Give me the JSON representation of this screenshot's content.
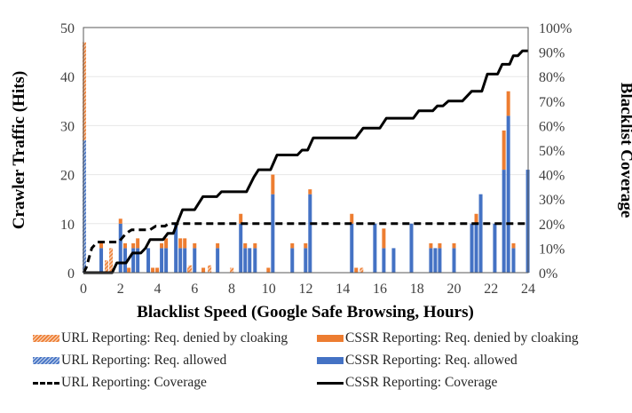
{
  "chart_data": {
    "type": "bar",
    "title": "",
    "xlabel": "Blacklist Speed (Google Safe Browsing, Hours)",
    "ylabel": "Crawler Traffic (Hits)",
    "y2label": "Blacklist Coverage",
    "xlim": [
      0,
      24
    ],
    "ylim": [
      0,
      50
    ],
    "y2lim": [
      0,
      100
    ],
    "x_ticks": [
      "0",
      "2",
      "4",
      "6",
      "8",
      "10",
      "12",
      "14",
      "16",
      "18",
      "20",
      "22",
      "24"
    ],
    "y_ticks": [
      "0",
      "10",
      "20",
      "30",
      "40",
      "50"
    ],
    "y2_ticks": [
      "0%",
      "10%",
      "20%",
      "30%",
      "40%",
      "50%",
      "60%",
      "70%",
      "80%",
      "90%",
      "100%"
    ],
    "grid": true,
    "legend_position": "bottom",
    "colors": {
      "cssr_allowed": "#4472c4",
      "cssr_denied": "#ed7d31",
      "url_allowed_hatch": "#4472c4",
      "url_denied_hatch": "#ed7d31",
      "line": "#000000"
    },
    "series": [
      {
        "name": "URL Reporting: Req. denied by cloaking",
        "kind": "stacked-bar-hatched",
        "points": [
          [
            0,
            20
          ],
          [
            1.2,
            2.5
          ],
          [
            1.44,
            5
          ],
          [
            5.71,
            1.5
          ],
          [
            6.76,
            1.5
          ],
          [
            7.96,
            1
          ],
          [
            14.96,
            1
          ]
        ]
      },
      {
        "name": "URL Reporting: Req. allowed",
        "kind": "stacked-bar-hatched",
        "points": [
          [
            0,
            27
          ]
        ]
      },
      {
        "name": "CSSR Reporting: Req. denied by cloaking",
        "kind": "stacked-bar",
        "points": [
          [
            0.96,
            1
          ],
          [
            2.0,
            1
          ],
          [
            2.25,
            1
          ],
          [
            2.45,
            1
          ],
          [
            2.69,
            1
          ],
          [
            2.93,
            2
          ],
          [
            3.74,
            1
          ],
          [
            3.98,
            1
          ],
          [
            4.22,
            1
          ],
          [
            4.46,
            2
          ],
          [
            5.23,
            2
          ],
          [
            5.47,
            2
          ],
          [
            5.71,
            1
          ],
          [
            6.0,
            1
          ],
          [
            6.47,
            1
          ],
          [
            7.24,
            1
          ],
          [
            8.49,
            2
          ],
          [
            8.73,
            1
          ],
          [
            9.26,
            1
          ],
          [
            9.98,
            1
          ],
          [
            10.22,
            4
          ],
          [
            11.27,
            1
          ],
          [
            11.99,
            1
          ],
          [
            12.23,
            1
          ],
          [
            14.48,
            2
          ],
          [
            14.72,
            1
          ],
          [
            16.21,
            4
          ],
          [
            18.75,
            1
          ],
          [
            19.23,
            1
          ],
          [
            20.0,
            1
          ],
          [
            21.2,
            2
          ],
          [
            22.69,
            8
          ],
          [
            22.93,
            5
          ],
          [
            23.21,
            1
          ]
        ]
      },
      {
        "name": "CSSR Reporting: Req. allowed",
        "kind": "stacked-bar",
        "points": [
          [
            0.96,
            5
          ],
          [
            2.0,
            10
          ],
          [
            2.25,
            5
          ],
          [
            2.69,
            5
          ],
          [
            2.93,
            5
          ],
          [
            3.5,
            5
          ],
          [
            4.22,
            5
          ],
          [
            4.46,
            5
          ],
          [
            4.99,
            10
          ],
          [
            5.23,
            5
          ],
          [
            5.47,
            5
          ],
          [
            6.0,
            5
          ],
          [
            7.24,
            5
          ],
          [
            8.49,
            10
          ],
          [
            8.73,
            5
          ],
          [
            8.97,
            5
          ],
          [
            9.26,
            5
          ],
          [
            10.22,
            16
          ],
          [
            11.27,
            5
          ],
          [
            11.99,
            5
          ],
          [
            12.23,
            16
          ],
          [
            14.48,
            10
          ],
          [
            15.73,
            10
          ],
          [
            16.21,
            5
          ],
          [
            16.74,
            5
          ],
          [
            17.7,
            10
          ],
          [
            18.75,
            5
          ],
          [
            18.99,
            5
          ],
          [
            19.23,
            5
          ],
          [
            20.0,
            5
          ],
          [
            20.96,
            10
          ],
          [
            21.2,
            10
          ],
          [
            21.44,
            16
          ],
          [
            22.2,
            10
          ],
          [
            22.69,
            21
          ],
          [
            22.93,
            32
          ],
          [
            23.21,
            5
          ],
          [
            23.98,
            21
          ]
        ]
      },
      {
        "name": "URL Reporting: Coverage",
        "kind": "line-dashed",
        "axis": "y2",
        "points": [
          [
            0,
            0
          ],
          [
            0.15,
            2
          ],
          [
            0.45,
            10
          ],
          [
            0.75,
            12.5
          ],
          [
            1.9,
            12.5
          ],
          [
            2.3,
            16
          ],
          [
            2.6,
            17.5
          ],
          [
            3.6,
            17.5
          ],
          [
            3.9,
            19
          ],
          [
            4.4,
            19
          ],
          [
            4.6,
            20
          ],
          [
            24,
            20
          ]
        ]
      },
      {
        "name": "CSSR Reporting: Coverage",
        "kind": "line",
        "axis": "y2",
        "points": [
          [
            0,
            0
          ],
          [
            1.55,
            0
          ],
          [
            1.8,
            4
          ],
          [
            2.3,
            4
          ],
          [
            2.65,
            8
          ],
          [
            3.1,
            8
          ],
          [
            3.35,
            10
          ],
          [
            3.6,
            13.5
          ],
          [
            4.3,
            13.5
          ],
          [
            4.55,
            16
          ],
          [
            4.85,
            16
          ],
          [
            5.1,
            21
          ],
          [
            5.35,
            25.7
          ],
          [
            6.0,
            25.7
          ],
          [
            6.45,
            31
          ],
          [
            7.2,
            31
          ],
          [
            7.45,
            33
          ],
          [
            8.8,
            33
          ],
          [
            9.2,
            39
          ],
          [
            9.45,
            42
          ],
          [
            10.1,
            42
          ],
          [
            10.45,
            48
          ],
          [
            11.55,
            48
          ],
          [
            11.8,
            50
          ],
          [
            12.1,
            50
          ],
          [
            12.4,
            55
          ],
          [
            14.7,
            55
          ],
          [
            15.1,
            59
          ],
          [
            16.0,
            59
          ],
          [
            16.35,
            63
          ],
          [
            17.8,
            63
          ],
          [
            18.1,
            66
          ],
          [
            18.85,
            66
          ],
          [
            19.1,
            68
          ],
          [
            19.4,
            68
          ],
          [
            19.7,
            70
          ],
          [
            20.45,
            70
          ],
          [
            20.7,
            72
          ],
          [
            20.95,
            74
          ],
          [
            21.5,
            74
          ],
          [
            21.8,
            81
          ],
          [
            22.35,
            81
          ],
          [
            22.6,
            85
          ],
          [
            23.0,
            85
          ],
          [
            23.2,
            88.5
          ],
          [
            23.45,
            88.5
          ],
          [
            23.7,
            90.5
          ],
          [
            24,
            90.5
          ]
        ]
      }
    ]
  },
  "legend": {
    "items": [
      {
        "label": "URL Reporting: Req. denied by cloaking"
      },
      {
        "label": "CSSR Reporting: Req. denied by cloaking"
      },
      {
        "label": "URL Reporting: Req. allowed"
      },
      {
        "label": "CSSR Reporting: Req. allowed"
      },
      {
        "label": "URL Reporting: Coverage"
      },
      {
        "label": "CSSR Reporting: Coverage"
      }
    ]
  }
}
